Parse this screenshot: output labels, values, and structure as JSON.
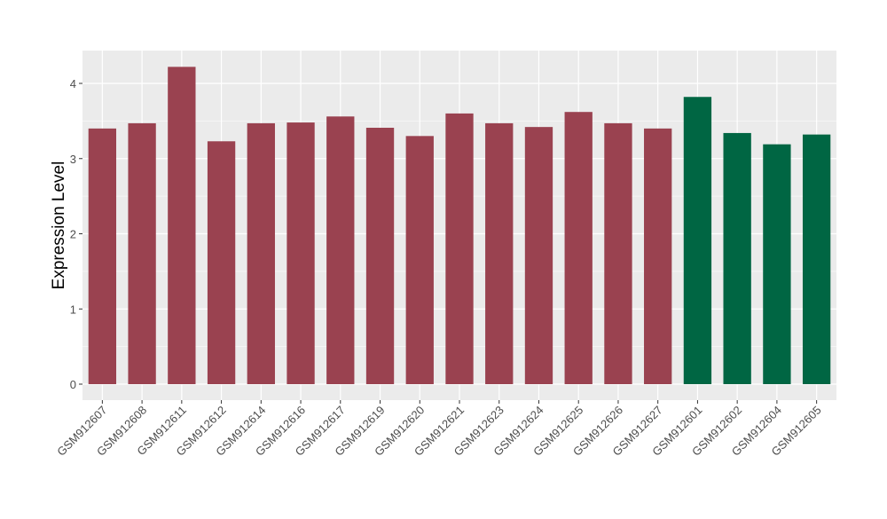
{
  "chart_data": {
    "type": "bar",
    "title": "",
    "xlabel": "",
    "ylabel": "Expression Level",
    "ylim": [
      -0.2,
      4.4
    ],
    "yticks": [
      0,
      1,
      2,
      3,
      4
    ],
    "grid": true,
    "legend": "none",
    "categories": [
      "GSM912607",
      "GSM912608",
      "GSM912611",
      "GSM912612",
      "GSM912614",
      "GSM912616",
      "GSM912617",
      "GSM912619",
      "GSM912620",
      "GSM912621",
      "GSM912623",
      "GSM912624",
      "GSM912625",
      "GSM912626",
      "GSM912627",
      "GSM912601",
      "GSM912602",
      "GSM912604",
      "GSM912605"
    ],
    "values": [
      3.4,
      3.47,
      4.22,
      3.23,
      3.47,
      3.48,
      3.56,
      3.41,
      3.3,
      3.6,
      3.47,
      3.42,
      3.62,
      3.47,
      3.4,
      3.82,
      3.34,
      3.19,
      3.32
    ],
    "groups": [
      "a",
      "a",
      "a",
      "a",
      "a",
      "a",
      "a",
      "a",
      "a",
      "a",
      "a",
      "a",
      "a",
      "a",
      "a",
      "b",
      "b",
      "b",
      "b"
    ],
    "colors": {
      "a": "#9A4250",
      "b": "#006643"
    }
  }
}
